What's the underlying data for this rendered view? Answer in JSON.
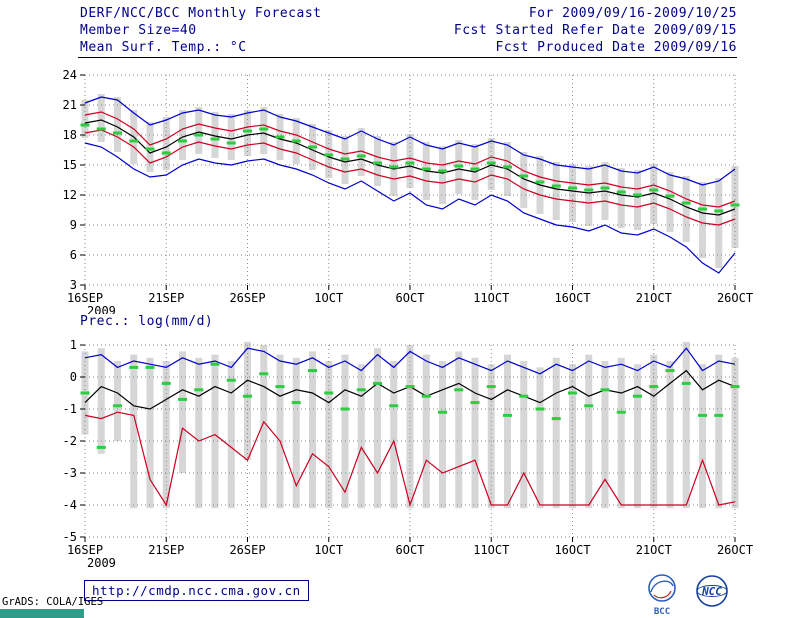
{
  "header": {
    "title": "DERF/NCC/BCC Monthly Forecast",
    "member_size": "Member Size=40",
    "temp_label": "Mean Surf. Temp.: °C",
    "for_range": "For 2009/09/16-2009/10/25",
    "fcst_refer": "Fcst Started Refer Date 2009/09/15",
    "fcst_produced": "Fcst Produced Date 2009/09/16"
  },
  "precip_label": "Prec.: log(mm/d)",
  "footer": {
    "url": "http://cmdp.ncc.cma.gov.cn",
    "grads_credit": "GrADS: COLA/IGES",
    "logos": [
      "BCC",
      "NCC"
    ]
  },
  "colors": {
    "header_text": "#00008b",
    "grid": "#8a8a8a",
    "bar_gray": "#d6d6d6",
    "line_blue": "#0000cc",
    "line_red": "#cc0022",
    "line_black": "#000000",
    "obs_green": "#2ecc40",
    "watermark_teal": "#2d9d8a",
    "logo_blue": "#2b5fb8"
  },
  "chart_data": [
    {
      "type": "line",
      "title": "Mean Surf. Temp.: °C",
      "xlabel": "",
      "ylabel": "",
      "ylim": [
        3,
        24
      ],
      "yticks": [
        3,
        6,
        9,
        12,
        15,
        18,
        21,
        24
      ],
      "x_count": 41,
      "x_tick_positions": [
        0,
        5,
        10,
        15,
        20,
        25,
        30,
        35,
        40
      ],
      "x_tick_labels": [
        "16SEP",
        "21SEP",
        "26SEP",
        "1OCT",
        "6OCT",
        "11OCT",
        "16OCT",
        "21OCT",
        "26OCT"
      ],
      "x_year_label": "2009",
      "grid": true,
      "legend": "none",
      "series": [
        {
          "name": "ensemble-max",
          "color": "#0000cc",
          "values": [
            21.2,
            21.8,
            21.5,
            20.2,
            19.0,
            19.5,
            20.2,
            20.5,
            20.0,
            19.8,
            20.2,
            20.5,
            19.8,
            19.4,
            18.8,
            18.2,
            17.6,
            18.4,
            17.6,
            17.0,
            17.8,
            17.0,
            16.6,
            17.2,
            16.8,
            17.4,
            17.0,
            16.0,
            15.6,
            15.0,
            14.8,
            14.6,
            15.0,
            14.4,
            14.2,
            14.8,
            14.0,
            13.6,
            13.0,
            13.4,
            14.6
          ]
        },
        {
          "name": "ensemble-min",
          "color": "#0000cc",
          "values": [
            17.2,
            16.8,
            15.8,
            14.6,
            13.8,
            14.0,
            15.0,
            15.6,
            15.2,
            15.0,
            15.4,
            15.6,
            15.0,
            14.6,
            14.0,
            13.2,
            12.6,
            13.4,
            12.4,
            11.4,
            12.2,
            11.0,
            10.6,
            11.6,
            11.0,
            12.0,
            11.4,
            10.2,
            9.6,
            9.0,
            8.8,
            8.4,
            9.0,
            8.2,
            8.0,
            8.6,
            7.8,
            6.8,
            5.2,
            4.2,
            6.2
          ]
        },
        {
          "name": "upper-quartile",
          "color": "#cc0022",
          "values": [
            20.0,
            20.3,
            19.6,
            18.6,
            17.0,
            17.6,
            18.6,
            19.1,
            18.7,
            18.4,
            18.8,
            19.0,
            18.4,
            18.0,
            17.3,
            16.6,
            16.1,
            16.4,
            15.8,
            15.4,
            15.7,
            15.2,
            15.0,
            15.4,
            15.1,
            15.8,
            15.4,
            14.4,
            13.8,
            13.4,
            13.2,
            13.0,
            13.2,
            12.8,
            12.6,
            13.0,
            12.4,
            11.6,
            11.0,
            10.8,
            11.4
          ]
        },
        {
          "name": "lower-quartile",
          "color": "#cc0022",
          "values": [
            18.2,
            18.5,
            17.8,
            16.8,
            15.2,
            15.8,
            16.8,
            17.3,
            16.9,
            16.6,
            17.0,
            17.2,
            16.6,
            16.2,
            15.5,
            14.8,
            14.3,
            14.6,
            14.0,
            13.6,
            13.9,
            13.4,
            13.2,
            13.6,
            13.3,
            14.0,
            13.6,
            12.6,
            12.0,
            11.6,
            11.4,
            11.2,
            11.4,
            11.0,
            10.8,
            11.2,
            10.6,
            9.8,
            9.2,
            9.0,
            9.6
          ]
        },
        {
          "name": "ensemble-mean",
          "color": "#000000",
          "values": [
            19.2,
            19.5,
            18.8,
            17.8,
            16.2,
            16.8,
            17.8,
            18.3,
            17.9,
            17.6,
            18.0,
            18.2,
            17.6,
            17.2,
            16.5,
            15.8,
            15.3,
            15.6,
            15.0,
            14.6,
            14.9,
            14.4,
            14.2,
            14.6,
            14.3,
            15.0,
            14.6,
            13.6,
            13.0,
            12.6,
            12.4,
            12.2,
            12.4,
            12.0,
            11.8,
            12.2,
            11.6,
            10.8,
            10.2,
            10.0,
            10.6
          ]
        }
      ],
      "markers": {
        "name": "observation",
        "color": "#2ecc40",
        "values": [
          19.0,
          18.6,
          18.2,
          17.4,
          16.6,
          16.2,
          17.4,
          18.0,
          17.6,
          17.2,
          18.4,
          18.6,
          17.8,
          17.4,
          16.8,
          16.0,
          15.6,
          15.9,
          15.2,
          14.8,
          15.2,
          14.6,
          14.4,
          14.9,
          14.6,
          15.2,
          14.8,
          13.9,
          13.3,
          12.9,
          12.7,
          12.5,
          12.7,
          12.3,
          12.0,
          12.5,
          11.9,
          11.2,
          10.6,
          10.4,
          11.0
        ]
      },
      "bars": {
        "name": "ensemble-spread",
        "color": "#d6d6d6",
        "low": [
          17.7,
          17.3,
          16.3,
          15.1,
          14.3,
          14.5,
          15.5,
          16.1,
          15.7,
          15.5,
          15.9,
          16.1,
          15.5,
          15.1,
          14.5,
          13.7,
          13.1,
          13.9,
          12.9,
          11.9,
          12.7,
          11.5,
          11.1,
          12.1,
          11.5,
          12.5,
          11.9,
          10.7,
          10.1,
          9.5,
          9.3,
          8.9,
          9.5,
          8.7,
          8.5,
          9.1,
          8.3,
          7.3,
          5.7,
          4.7,
          6.7
        ],
        "high": [
          21.5,
          22.1,
          21.8,
          20.5,
          19.3,
          19.8,
          20.5,
          20.8,
          20.3,
          20.1,
          20.5,
          20.8,
          20.1,
          19.7,
          19.1,
          18.5,
          17.9,
          18.7,
          17.9,
          17.3,
          18.1,
          17.3,
          16.9,
          17.5,
          17.1,
          17.7,
          17.3,
          16.3,
          15.9,
          15.3,
          15.1,
          14.9,
          15.3,
          14.7,
          14.5,
          15.1,
          14.3,
          13.9,
          13.3,
          13.7,
          14.9
        ]
      }
    },
    {
      "type": "line",
      "title": "Prec.: log(mm/d)",
      "xlabel": "",
      "ylabel": "",
      "ylim": [
        -5,
        1
      ],
      "yticks": [
        -5,
        -4,
        -3,
        -2,
        -1,
        0,
        1
      ],
      "x_count": 41,
      "x_tick_positions": [
        0,
        5,
        10,
        15,
        20,
        25,
        30,
        35,
        40
      ],
      "x_tick_labels": [
        "16SEP",
        "21SEP",
        "26SEP",
        "1OCT",
        "6OCT",
        "11OCT",
        "16OCT",
        "21OCT",
        "26OCT"
      ],
      "x_year_label": "2009",
      "grid": true,
      "legend": "none",
      "series": [
        {
          "name": "ensemble-min",
          "color": "#cc0022",
          "values": [
            -1.2,
            -1.3,
            -1.1,
            -1.2,
            -3.2,
            -4.0,
            -1.6,
            -2.0,
            -1.8,
            -2.2,
            -2.6,
            -1.4,
            -2.0,
            -3.4,
            -2.4,
            -2.8,
            -3.6,
            -2.2,
            -3.0,
            -2.0,
            -4.0,
            -2.6,
            -3.0,
            -2.8,
            -2.6,
            -4.0,
            -4.0,
            -3.0,
            -4.0,
            -4.0,
            -4.0,
            -4.0,
            -3.2,
            -4.0,
            -4.0,
            -4.0,
            -4.0,
            -4.0,
            -2.6,
            -4.0,
            -3.9
          ]
        },
        {
          "name": "ensemble-max",
          "color": "#0000cc",
          "values": [
            0.6,
            0.7,
            0.3,
            0.5,
            0.4,
            0.3,
            0.6,
            0.4,
            0.5,
            0.3,
            0.9,
            0.8,
            0.5,
            0.4,
            0.6,
            0.3,
            0.5,
            0.2,
            0.7,
            0.3,
            0.8,
            0.5,
            0.3,
            0.6,
            0.4,
            0.2,
            0.5,
            0.3,
            0.1,
            0.4,
            0.2,
            0.5,
            0.3,
            0.4,
            0.2,
            0.5,
            0.3,
            0.9,
            0.2,
            0.5,
            0.4
          ]
        },
        {
          "name": "ensemble-mean",
          "color": "#000000",
          "values": [
            -0.8,
            -0.3,
            -0.5,
            -0.9,
            -1.0,
            -0.7,
            -0.4,
            -0.6,
            -0.3,
            -0.5,
            -0.1,
            -0.3,
            -0.6,
            -0.4,
            -0.5,
            -0.8,
            -0.4,
            -0.6,
            -0.2,
            -0.5,
            -0.3,
            -0.6,
            -0.4,
            -0.2,
            -0.5,
            -0.7,
            -0.4,
            -0.6,
            -0.8,
            -0.5,
            -0.3,
            -0.6,
            -0.4,
            -0.5,
            -0.3,
            -0.6,
            -0.2,
            0.2,
            -0.4,
            -0.1,
            -0.3
          ]
        }
      ],
      "markers": {
        "name": "observation",
        "color": "#2ecc40",
        "values": [
          -0.5,
          -2.2,
          -0.9,
          0.3,
          0.3,
          -0.2,
          -0.7,
          -0.4,
          0.4,
          -0.1,
          -0.6,
          0.1,
          -0.3,
          -0.8,
          0.2,
          -0.5,
          -1.0,
          -0.4,
          -0.2,
          -0.9,
          -0.3,
          -0.6,
          -1.1,
          -0.4,
          -0.8,
          -0.3,
          -1.2,
          -0.6,
          -1.0,
          -1.3,
          -0.5,
          -0.9,
          -0.4,
          -1.1,
          -0.6,
          -0.3,
          0.2,
          -0.2,
          -1.2,
          -1.2,
          -0.3
        ]
      },
      "bars": {
        "name": "ensemble-spread",
        "color": "#d6d6d6",
        "low": [
          -1.8,
          -2.4,
          -2.0,
          -4.1,
          -4.1,
          -4.1,
          -3.0,
          -4.1,
          -4.1,
          -4.1,
          -2.6,
          -4.1,
          -4.1,
          -4.1,
          -4.1,
          -4.1,
          -4.1,
          -4.1,
          -4.1,
          -4.1,
          -4.1,
          -4.1,
          -4.1,
          -4.1,
          -4.1,
          -4.1,
          -4.1,
          -4.1,
          -4.1,
          -4.1,
          -4.1,
          -4.1,
          -4.1,
          -4.1,
          -4.1,
          -4.1,
          -4.1,
          -4.1,
          -4.1,
          -4.1,
          -4.1
        ],
        "high": [
          0.8,
          0.9,
          0.5,
          0.7,
          0.6,
          0.5,
          0.8,
          0.6,
          0.7,
          0.5,
          1.1,
          1.0,
          0.7,
          0.6,
          0.8,
          0.5,
          0.7,
          0.4,
          0.9,
          0.5,
          1.0,
          0.7,
          0.5,
          0.8,
          0.6,
          0.4,
          0.7,
          0.5,
          0.3,
          0.6,
          0.4,
          0.7,
          0.5,
          0.6,
          0.4,
          0.7,
          0.5,
          1.1,
          0.4,
          0.7,
          0.6
        ]
      }
    }
  ]
}
